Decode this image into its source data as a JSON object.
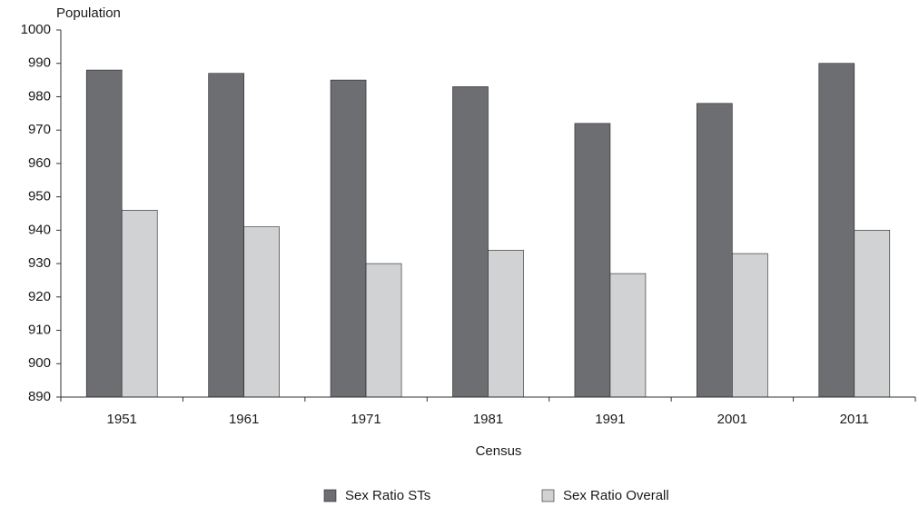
{
  "chart_data": {
    "type": "bar",
    "y_axis_label": "Population",
    "x_axis_label": "Census",
    "categories": [
      "1951",
      "1961",
      "1971",
      "1981",
      "1991",
      "2001",
      "2011"
    ],
    "series": [
      {
        "name": "Sex Ratio STs",
        "color": "#6d6e71",
        "values": [
          988,
          987,
          985,
          983,
          972,
          978,
          990
        ]
      },
      {
        "name": "Sex Ratio Overall",
        "color": "#d1d2d4",
        "values": [
          946,
          941,
          930,
          934,
          927,
          933,
          940
        ]
      }
    ],
    "ylim": [
      890,
      1000
    ],
    "yticks": [
      890,
      900,
      910,
      920,
      930,
      940,
      950,
      960,
      970,
      980,
      990,
      1000
    ],
    "grid": false,
    "legend": "bottom"
  }
}
